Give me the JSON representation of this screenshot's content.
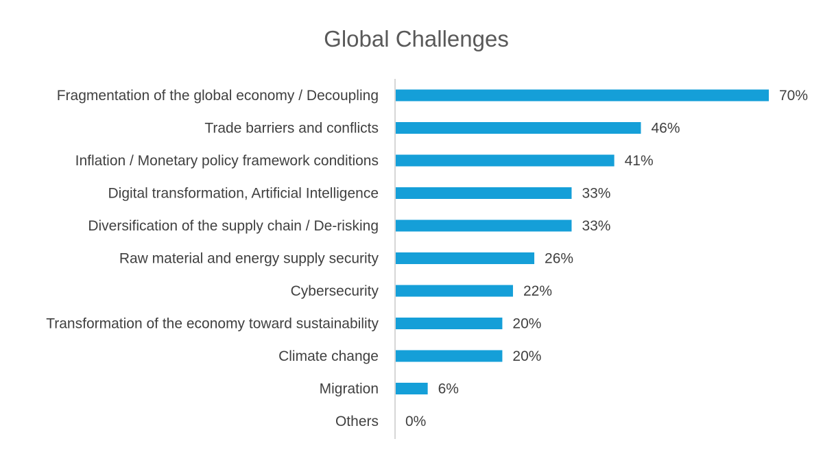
{
  "chart_data": {
    "type": "bar",
    "orientation": "horizontal",
    "title": "Global Challenges",
    "xlabel": "",
    "ylabel": "",
    "categories": [
      "Fragmentation of the global economy / Decoupling",
      "Trade barriers and conflicts",
      "Inflation / Monetary policy framework conditions",
      "Digital transformation, Artificial Intelligence",
      "Diversification of the supply chain / De-risking",
      "Raw material and energy supply security",
      "Cybersecurity",
      "Transformation of the economy toward sustainability",
      "Climate change",
      "Migration",
      "Others"
    ],
    "values": [
      70,
      46,
      41,
      33,
      33,
      26,
      22,
      20,
      20,
      6,
      0
    ],
    "value_labels": [
      "70%",
      "46%",
      "41%",
      "33%",
      "33%",
      "26%",
      "22%",
      "20%",
      "20%",
      "6%",
      "0%"
    ],
    "xlim": [
      0,
      70
    ],
    "grid": false,
    "legend": "none",
    "bar_color": "#159fd8",
    "axis_color": "#c8c8c8"
  }
}
